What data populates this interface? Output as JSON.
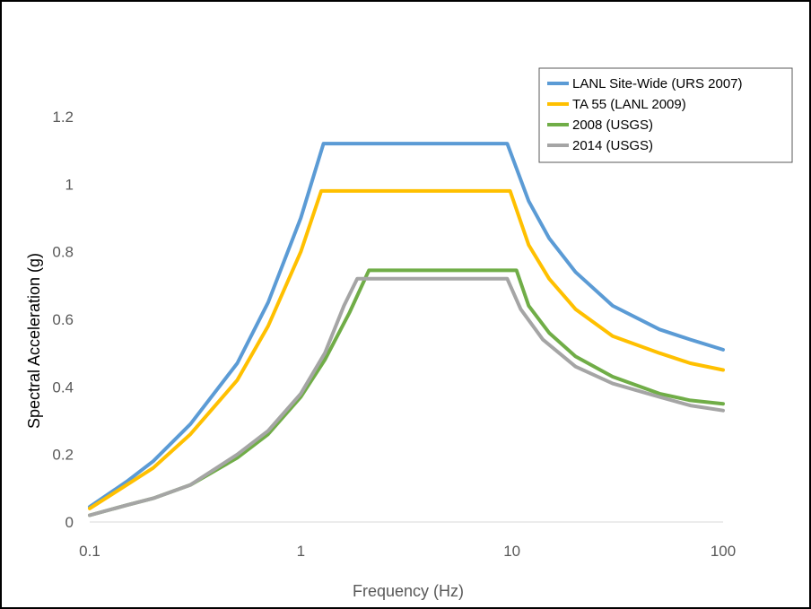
{
  "chart_data": {
    "type": "line",
    "title": "",
    "xlabel": "Frequency (Hz)",
    "ylabel": "Spectral Acceleration (g)",
    "xscale": "log",
    "xlim": [
      0.1,
      100
    ],
    "ylim": [
      0,
      1.2
    ],
    "xticks": [
      0.1,
      1,
      10,
      100
    ],
    "xtick_labels": [
      "0.1",
      "1",
      "10",
      "100"
    ],
    "yticks": [
      0,
      0.2,
      0.4,
      0.6,
      0.8,
      1,
      1.2
    ],
    "ytick_labels": [
      "0",
      "0.2",
      "0.4",
      "0.6",
      "0.8",
      "1",
      "1.2"
    ],
    "grid": false,
    "legend_position": "top-right",
    "series": [
      {
        "name": "LANL Site-Wide (URS 2007)",
        "color": "#5B9BD5",
        "x": [
          0.1,
          0.15,
          0.2,
          0.3,
          0.5,
          0.7,
          1.0,
          1.28,
          9.5,
          12,
          15,
          20,
          30,
          50,
          70,
          100
        ],
        "y": [
          0.045,
          0.12,
          0.18,
          0.29,
          0.47,
          0.65,
          0.9,
          1.12,
          1.12,
          0.95,
          0.84,
          0.74,
          0.64,
          0.57,
          0.54,
          0.51
        ]
      },
      {
        "name": "TA 55 (LANL 2009)",
        "color": "#FFC000",
        "x": [
          0.1,
          0.15,
          0.2,
          0.3,
          0.5,
          0.7,
          1.0,
          1.25,
          9.8,
          12,
          15,
          20,
          30,
          50,
          70,
          100
        ],
        "y": [
          0.04,
          0.11,
          0.16,
          0.26,
          0.42,
          0.58,
          0.8,
          0.98,
          0.98,
          0.82,
          0.72,
          0.63,
          0.55,
          0.5,
          0.47,
          0.45
        ]
      },
      {
        "name": "2008 (USGS)",
        "color": "#70AD47",
        "x": [
          0.1,
          0.15,
          0.2,
          0.3,
          0.5,
          0.7,
          1.0,
          1.3,
          1.7,
          2.1,
          10.5,
          12,
          15,
          20,
          30,
          50,
          70,
          100
        ],
        "y": [
          0.02,
          0.05,
          0.07,
          0.11,
          0.19,
          0.26,
          0.37,
          0.48,
          0.62,
          0.745,
          0.745,
          0.64,
          0.56,
          0.49,
          0.43,
          0.38,
          0.36,
          0.35
        ]
      },
      {
        "name": "2014 (USGS)",
        "color": "#A5A5A5",
        "x": [
          0.1,
          0.15,
          0.2,
          0.3,
          0.5,
          0.7,
          1.0,
          1.3,
          1.6,
          1.85,
          9.5,
          11,
          14,
          20,
          30,
          50,
          70,
          100
        ],
        "y": [
          0.02,
          0.05,
          0.07,
          0.11,
          0.2,
          0.27,
          0.38,
          0.5,
          0.64,
          0.72,
          0.72,
          0.63,
          0.54,
          0.46,
          0.41,
          0.37,
          0.345,
          0.33
        ]
      }
    ]
  }
}
